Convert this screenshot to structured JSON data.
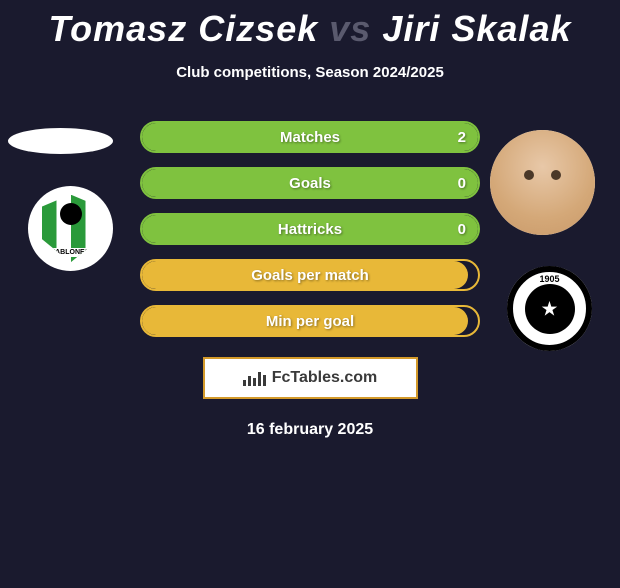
{
  "header": {
    "player1_name": "Tomasz Cizsek",
    "vs_text": "vs",
    "player2_name": "Jiri Skalak",
    "subtitle": "Club competitions, Season 2024/2025"
  },
  "colors": {
    "background": "#1a1a2e",
    "green": "#7fc23f",
    "yellow": "#e8b838",
    "text": "#ffffff",
    "muted": "#5a5a6e",
    "attribution_border": "#d49a2a",
    "attribution_bg": "#ffffff",
    "attribution_text": "#3a3a3a"
  },
  "stats": {
    "rows": [
      {
        "label": "Matches",
        "value": "2",
        "color": "green",
        "fill_pct": 100
      },
      {
        "label": "Goals",
        "value": "0",
        "color": "green",
        "fill_pct": 100
      },
      {
        "label": "Hattricks",
        "value": "0",
        "color": "green",
        "fill_pct": 100
      },
      {
        "label": "Goals per match",
        "value": "",
        "color": "yellow",
        "fill_pct": 97
      },
      {
        "label": "Min per goal",
        "value": "",
        "color": "yellow",
        "fill_pct": 97
      }
    ]
  },
  "clubs": {
    "left_label": "JABLONEC",
    "right_year": "1905"
  },
  "attribution": {
    "text": "FcTables.com"
  },
  "footer": {
    "date": "16 february 2025"
  }
}
